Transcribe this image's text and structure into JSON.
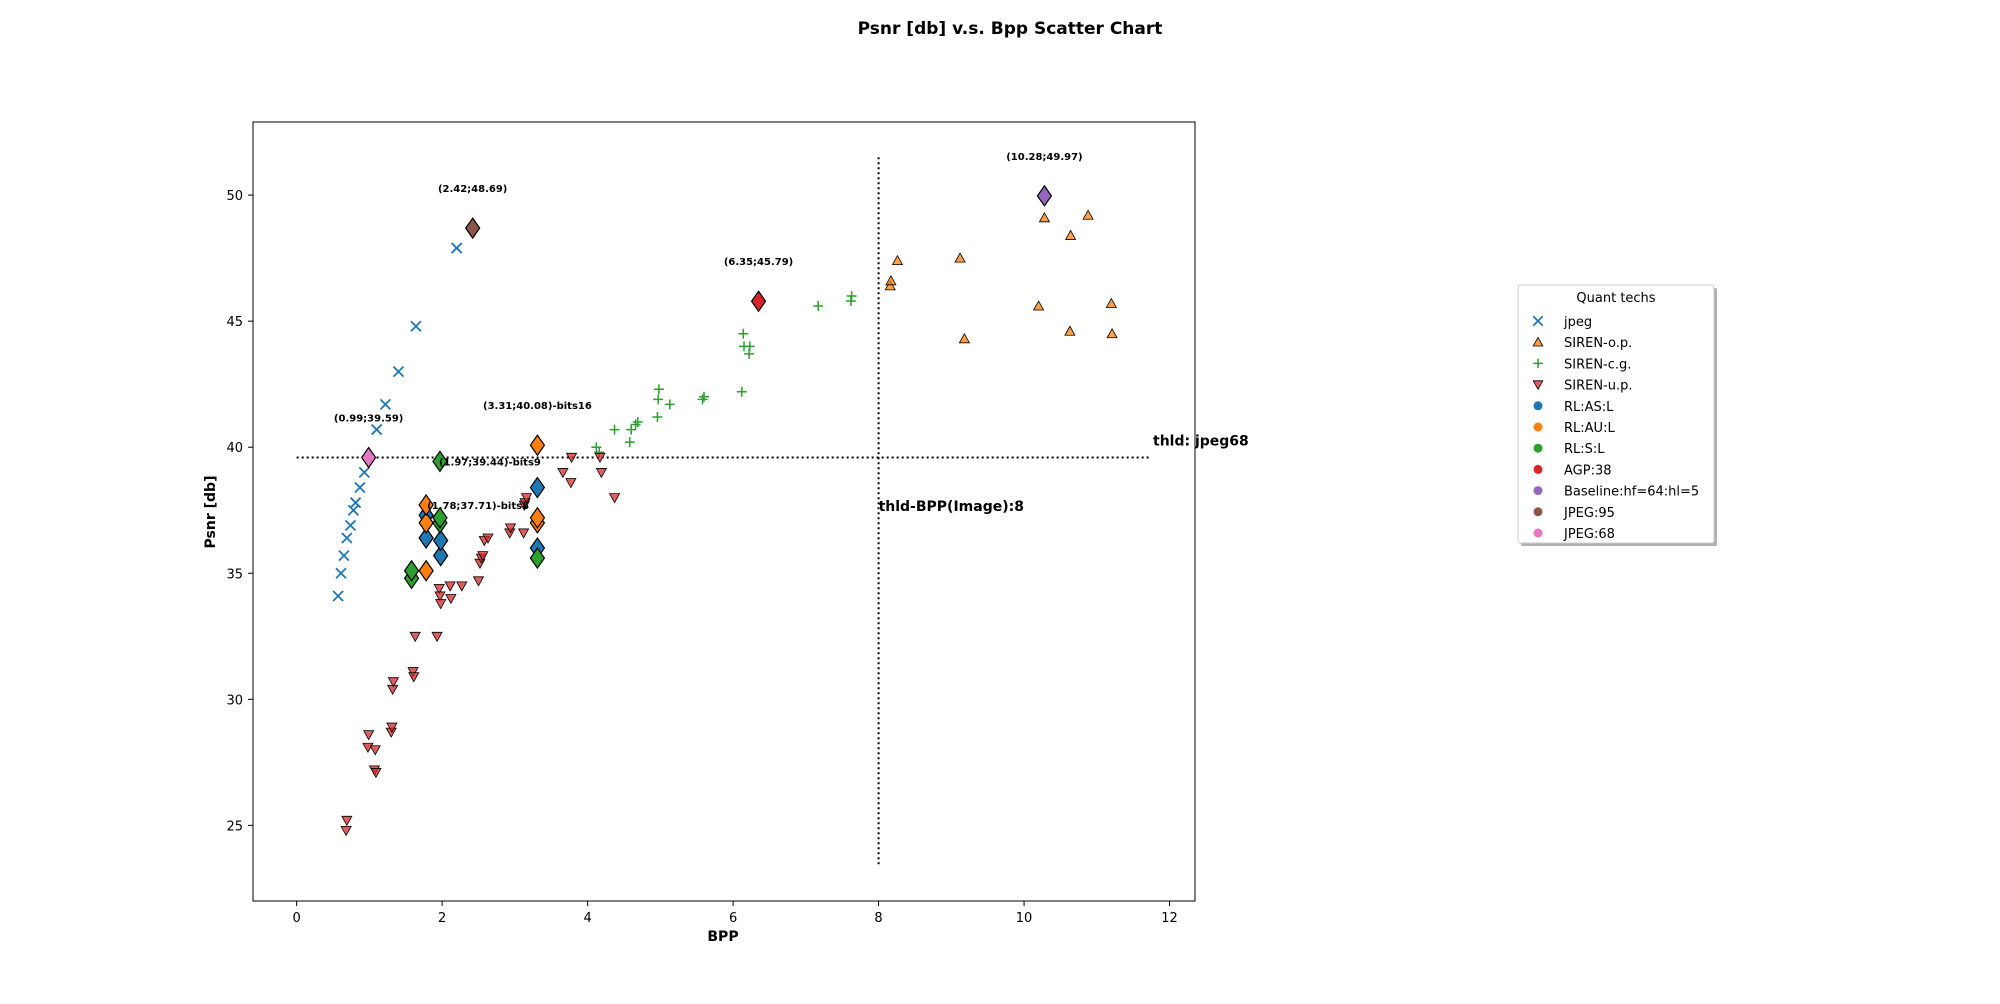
{
  "chart_data": {
    "type": "scatter",
    "title": "Psnr [db] v.s. Bpp Scatter Chart",
    "xlabel": "BPP",
    "ylabel": "Psnr [db]",
    "xlim": [
      -0.6,
      12.35
    ],
    "ylim": [
      22.0,
      52.9
    ],
    "xticks": [
      0,
      2,
      4,
      6,
      8,
      10,
      12
    ],
    "yticks": [
      25,
      30,
      35,
      40,
      45,
      50
    ],
    "grid": false,
    "legend": {
      "title": "Quant techs",
      "placement": "outside-right"
    },
    "reference_lines": [
      {
        "orientation": "horizontal",
        "y": 39.59,
        "x_range": [
          0,
          11.75
        ],
        "label": "thld: jpeg68",
        "style": "dotted",
        "color": "#000000"
      },
      {
        "orientation": "vertical",
        "x": 8,
        "y_range": [
          23.4,
          51.5
        ],
        "label": "thld-BPP(Image):8",
        "style": "dotted",
        "color": "#000000"
      }
    ],
    "series": [
      {
        "name": "jpeg",
        "marker": "x",
        "color": "#1f77b4",
        "points": [
          [
            0.57,
            34.1
          ],
          [
            0.61,
            35.0
          ],
          [
            0.65,
            35.7
          ],
          [
            0.69,
            36.4
          ],
          [
            0.74,
            36.9
          ],
          [
            0.78,
            37.5
          ],
          [
            0.81,
            37.8
          ],
          [
            0.87,
            38.4
          ],
          [
            0.93,
            39.0
          ],
          [
            1.1,
            40.7
          ],
          [
            1.22,
            41.7
          ],
          [
            1.4,
            43.0
          ],
          [
            1.64,
            44.8
          ],
          [
            2.2,
            47.9
          ]
        ]
      },
      {
        "name": "SIREN-o.p.",
        "marker": "triangle-up",
        "color": "#ff7f0e",
        "points": [
          [
            8.16,
            46.4
          ],
          [
            8.17,
            46.6
          ],
          [
            8.26,
            47.4
          ],
          [
            9.12,
            47.5
          ],
          [
            9.18,
            44.3
          ],
          [
            10.2,
            45.6
          ],
          [
            10.28,
            49.1
          ],
          [
            10.63,
            44.6
          ],
          [
            10.64,
            48.4
          ],
          [
            10.88,
            49.2
          ],
          [
            11.2,
            45.7
          ],
          [
            11.21,
            44.5
          ]
        ]
      },
      {
        "name": "SIREN-c.g.",
        "marker": "plus",
        "color": "#2ca02c",
        "points": [
          [
            4.12,
            40.0
          ],
          [
            4.16,
            39.8
          ],
          [
            4.37,
            40.7
          ],
          [
            4.58,
            40.2
          ],
          [
            4.6,
            40.7
          ],
          [
            4.66,
            40.9
          ],
          [
            4.69,
            41.0
          ],
          [
            4.96,
            41.2
          ],
          [
            4.97,
            41.9
          ],
          [
            4.98,
            42.3
          ],
          [
            5.13,
            41.7
          ],
          [
            5.58,
            41.9
          ],
          [
            5.6,
            42.0
          ],
          [
            6.12,
            42.2
          ],
          [
            6.14,
            44.5
          ],
          [
            6.15,
            44.0
          ],
          [
            6.22,
            43.7
          ],
          [
            6.23,
            44.0
          ],
          [
            7.17,
            45.6
          ],
          [
            7.62,
            45.8
          ],
          [
            7.63,
            46.0
          ]
        ]
      },
      {
        "name": "SIREN-u.p.",
        "marker": "triangle-down",
        "color": "#d62728",
        "points": [
          [
            0.68,
            24.8
          ],
          [
            0.69,
            25.2
          ],
          [
            0.98,
            28.1
          ],
          [
            0.99,
            28.6
          ],
          [
            1.07,
            27.2
          ],
          [
            1.08,
            28.0
          ],
          [
            1.09,
            27.1
          ],
          [
            1.3,
            28.7
          ],
          [
            1.31,
            28.9
          ],
          [
            1.32,
            30.4
          ],
          [
            1.33,
            30.7
          ],
          [
            1.6,
            31.1
          ],
          [
            1.61,
            30.9
          ],
          [
            1.63,
            32.5
          ],
          [
            1.93,
            32.5
          ],
          [
            1.96,
            34.4
          ],
          [
            1.97,
            34.1
          ],
          [
            1.98,
            33.8
          ],
          [
            2.11,
            34.5
          ],
          [
            2.12,
            34.0
          ],
          [
            2.27,
            34.5
          ],
          [
            2.5,
            34.7
          ],
          [
            2.52,
            35.4
          ],
          [
            2.54,
            35.6
          ],
          [
            2.56,
            35.7
          ],
          [
            2.58,
            36.3
          ],
          [
            2.63,
            36.4
          ],
          [
            2.93,
            36.6
          ],
          [
            2.94,
            36.8
          ],
          [
            3.12,
            36.6
          ],
          [
            3.13,
            37.7
          ],
          [
            3.14,
            37.8
          ],
          [
            3.16,
            38.0
          ],
          [
            3.66,
            39.0
          ],
          [
            3.77,
            38.6
          ],
          [
            3.78,
            39.6
          ],
          [
            4.17,
            39.6
          ],
          [
            4.19,
            39.0
          ],
          [
            4.37,
            38.0
          ]
        ]
      },
      {
        "name": "RL:AS:L",
        "marker": "diamond",
        "color": "#1f77b4",
        "points": [
          [
            1.78,
            36.4
          ],
          [
            1.78,
            37.3
          ],
          [
            1.98,
            35.7
          ],
          [
            1.98,
            36.3
          ],
          [
            3.31,
            36.0
          ],
          [
            3.31,
            38.4
          ]
        ]
      },
      {
        "name": "RL:AU:L",
        "marker": "diamond",
        "color": "#ff7f0e",
        "points": [
          [
            1.78,
            35.1
          ],
          [
            1.78,
            37.0
          ],
          [
            1.78,
            37.71
          ],
          [
            3.31,
            37.0
          ],
          [
            3.31,
            37.2
          ],
          [
            3.31,
            40.08
          ]
        ]
      },
      {
        "name": "RL:S:L",
        "marker": "diamond",
        "color": "#2ca02c",
        "points": [
          [
            1.58,
            34.8
          ],
          [
            1.58,
            35.1
          ],
          [
            1.97,
            37.0
          ],
          [
            1.97,
            37.2
          ],
          [
            1.97,
            39.44
          ],
          [
            3.31,
            35.6
          ]
        ]
      },
      {
        "name": "AGP:38",
        "marker": "diamond",
        "color": "#d62728",
        "points": [
          [
            6.35,
            45.79
          ]
        ]
      },
      {
        "name": "Baseline:hf=64:hl=5",
        "marker": "diamond",
        "color": "#9467bd",
        "points": [
          [
            10.28,
            49.97
          ]
        ]
      },
      {
        "name": "JPEG:95",
        "marker": "diamond",
        "color": "#8c564b",
        "points": [
          [
            2.42,
            48.69
          ]
        ]
      },
      {
        "name": "JPEG:68",
        "marker": "diamond",
        "color": "#e377c2",
        "points": [
          [
            0.99,
            39.59
          ]
        ]
      }
    ],
    "annotations": [
      {
        "x": 2.42,
        "y": 48.69,
        "text": "(2.42;48.69)"
      },
      {
        "x": 6.35,
        "y": 45.79,
        "text": "(6.35;45.79)"
      },
      {
        "x": 10.28,
        "y": 49.97,
        "text": "(10.28;49.97)"
      },
      {
        "x": 0.99,
        "y": 39.59,
        "text": "(0.99;39.59)"
      },
      {
        "x": 3.31,
        "y": 40.08,
        "text": "(3.31;40.08)-bits16"
      },
      {
        "x": 1.97,
        "y": 39.44,
        "text": "(1.97;39.44)-bits9"
      },
      {
        "x": 1.78,
        "y": 37.71,
        "text": "(1.78;37.71)-bits8"
      }
    ]
  }
}
